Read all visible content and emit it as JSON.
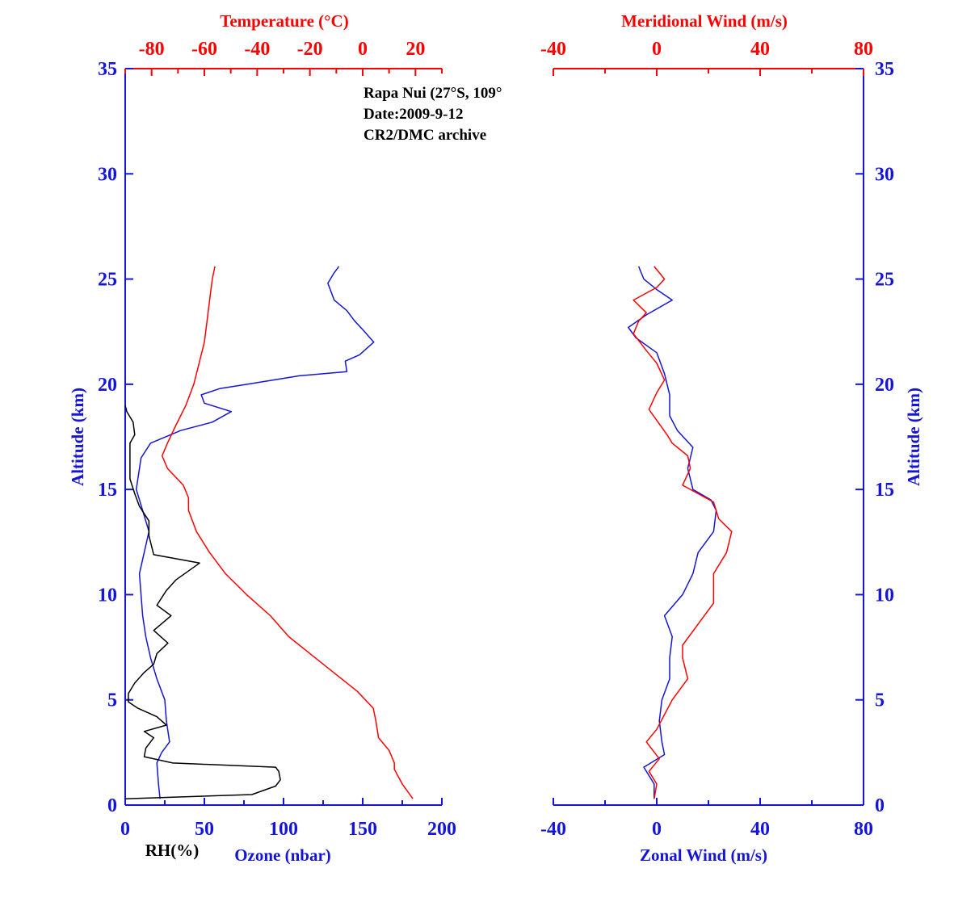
{
  "colors": {
    "blue": "#1515d6",
    "red": "#ff0000",
    "black": "#000000"
  },
  "annotation": [
    "Rapa Nui (27°S, 109°",
    "Date:2009-9-12",
    "CR2/DMC archive"
  ],
  "chart_data": [
    {
      "type": "line",
      "panel": "left",
      "ylabel": "Altitude (km)",
      "ylim": [
        0,
        35
      ],
      "yticks": [
        0,
        5,
        10,
        15,
        20,
        25,
        30,
        35
      ],
      "bottom_axis": {
        "label": "Ozone (nbar)",
        "xlim": [
          0,
          200
        ],
        "ticks": [
          0,
          50,
          100,
          150,
          200
        ]
      },
      "bottom_axis_extra_label": "RH(%)",
      "top_axis": {
        "label": "Temperature (°C)",
        "xlim": [
          -90,
          30
        ],
        "ticks": [
          -80,
          -60,
          -40,
          -20,
          0,
          20
        ]
      },
      "series": [
        {
          "name": "Ozone (nbar)",
          "axis": "bottom",
          "color": "blue",
          "points": [
            [
              22,
              0.3
            ],
            [
              21,
              1
            ],
            [
              20,
              2
            ],
            [
              23,
              2.5
            ],
            [
              28,
              3
            ],
            [
              26,
              4
            ],
            [
              25,
              5
            ],
            [
              20,
              6
            ],
            [
              16,
              7
            ],
            [
              13,
              8
            ],
            [
              11,
              9
            ],
            [
              10,
              10
            ],
            [
              9,
              11
            ],
            [
              12,
              12
            ],
            [
              15,
              13
            ],
            [
              11,
              14
            ],
            [
              7,
              15
            ],
            [
              10,
              16.5
            ],
            [
              16,
              17.2
            ],
            [
              35,
              17.8
            ],
            [
              55,
              18.2
            ],
            [
              67,
              18.7
            ],
            [
              50,
              19.1
            ],
            [
              48,
              19.5
            ],
            [
              60,
              19.8
            ],
            [
              77,
              20
            ],
            [
              110,
              20.4
            ],
            [
              140,
              20.6
            ],
            [
              139,
              21.1
            ],
            [
              148,
              21.4
            ],
            [
              157,
              22
            ],
            [
              150,
              22.6
            ],
            [
              145,
              23
            ],
            [
              140,
              23.5
            ],
            [
              132,
              24
            ],
            [
              130,
              24.4
            ],
            [
              128,
              24.8
            ],
            [
              132,
              25.3
            ],
            [
              135,
              25.6
            ]
          ]
        },
        {
          "name": "RH(%)",
          "axis": "bottom",
          "color": "black",
          "points": [
            [
              0,
              0.3
            ],
            [
              80,
              0.5
            ],
            [
              95,
              0.9
            ],
            [
              98,
              1.2
            ],
            [
              97,
              1.6
            ],
            [
              95,
              1.8
            ],
            [
              30,
              2
            ],
            [
              12,
              2.3
            ],
            [
              13,
              2.7
            ],
            [
              18,
              3.2
            ],
            [
              12,
              3.5
            ],
            [
              26,
              3.8
            ],
            [
              20,
              4.2
            ],
            [
              8,
              4.6
            ],
            [
              2,
              4.9
            ],
            [
              2,
              5.3
            ],
            [
              6,
              5.8
            ],
            [
              12,
              6.3
            ],
            [
              18,
              6.7
            ],
            [
              20,
              7.2
            ],
            [
              27,
              7.7
            ],
            [
              18,
              8.3
            ],
            [
              29,
              9
            ],
            [
              20,
              9.5
            ],
            [
              26,
              10.2
            ],
            [
              32,
              10.7
            ],
            [
              47,
              11.5
            ],
            [
              18,
              11.9
            ],
            [
              15,
              12.8
            ],
            [
              15,
              13.5
            ],
            [
              9,
              14.2
            ],
            [
              6,
              14.8
            ],
            [
              3,
              15.5
            ],
            [
              3,
              16.5
            ],
            [
              3,
              17.2
            ],
            [
              6,
              17.6
            ],
            [
              5,
              18.2
            ],
            [
              1,
              18.7
            ],
            [
              0,
              19
            ]
          ]
        },
        {
          "name": "Temperature (°C)",
          "axis": "top",
          "color": "red",
          "points": [
            [
              19,
              0.3
            ],
            [
              15,
              1
            ],
            [
              12,
              1.7
            ],
            [
              12,
              2
            ],
            [
              10,
              2.6
            ],
            [
              6,
              3.2
            ],
            [
              5,
              4
            ],
            [
              4,
              4.6
            ],
            [
              -2,
              5.4
            ],
            [
              -10,
              6.2
            ],
            [
              -20,
              7.2
            ],
            [
              -28,
              8
            ],
            [
              -35,
              9
            ],
            [
              -44,
              10
            ],
            [
              -52,
              11
            ],
            [
              -58,
              12
            ],
            [
              -63,
              13
            ],
            [
              -66,
              14
            ],
            [
              -66,
              14.6
            ],
            [
              -68,
              15.2
            ],
            [
              -74,
              16
            ],
            [
              -76,
              16.6
            ],
            [
              -74,
              17.2
            ],
            [
              -71,
              18
            ],
            [
              -67,
              19
            ],
            [
              -64,
              20
            ],
            [
              -62,
              21
            ],
            [
              -60,
              22
            ],
            [
              -59,
              23
            ],
            [
              -58,
              24
            ],
            [
              -57,
              25
            ],
            [
              -56,
              25.6
            ]
          ]
        }
      ]
    },
    {
      "type": "line",
      "panel": "right",
      "ylabel": "Altitude (km)",
      "ylim": [
        0,
        35
      ],
      "yticks": [
        0,
        5,
        10,
        15,
        20,
        25,
        30,
        35
      ],
      "bottom_axis": {
        "label": "Zonal Wind (m/s)",
        "xlim": [
          -40,
          80
        ],
        "ticks": [
          -40,
          0,
          40,
          80
        ]
      },
      "top_axis": {
        "label": "Meridional Wind (m/s)",
        "xlim": [
          -40,
          80
        ],
        "ticks": [
          -40,
          0,
          40,
          80
        ]
      },
      "series": [
        {
          "name": "Zonal Wind (m/s)",
          "axis": "bottom",
          "color": "blue",
          "points": [
            [
              -1,
              0.3
            ],
            [
              -1,
              1
            ],
            [
              -5,
              1.8
            ],
            [
              3,
              2.4
            ],
            [
              2,
              3
            ],
            [
              1,
              4
            ],
            [
              2,
              5
            ],
            [
              5,
              6
            ],
            [
              5,
              7
            ],
            [
              6,
              8
            ],
            [
              3,
              9
            ],
            [
              10,
              10
            ],
            [
              14,
              11
            ],
            [
              16,
              12
            ],
            [
              22,
              13
            ],
            [
              23,
              14
            ],
            [
              21,
              14.5
            ],
            [
              14,
              15
            ],
            [
              12,
              16
            ],
            [
              14,
              17
            ],
            [
              8,
              17.8
            ],
            [
              5,
              18.5
            ],
            [
              5,
              19.5
            ],
            [
              3,
              20.5
            ],
            [
              0,
              21.5
            ],
            [
              -8,
              22.2
            ],
            [
              -11,
              22.7
            ],
            [
              -4,
              23.3
            ],
            [
              6,
              24
            ],
            [
              0,
              24.5
            ],
            [
              -5,
              25
            ],
            [
              -7,
              25.6
            ]
          ]
        },
        {
          "name": "Meridional Wind (m/s)",
          "axis": "top",
          "color": "red",
          "points": [
            [
              -1,
              0.3
            ],
            [
              0,
              1
            ],
            [
              -3,
              1.6
            ],
            [
              1,
              2.2
            ],
            [
              -4,
              3
            ],
            [
              0,
              3.6
            ],
            [
              6,
              5
            ],
            [
              12,
              6
            ],
            [
              10,
              7
            ],
            [
              10,
              7.6
            ],
            [
              16,
              8.6
            ],
            [
              22,
              9.6
            ],
            [
              22,
              11
            ],
            [
              27,
              12
            ],
            [
              29,
              13
            ],
            [
              24,
              13.6
            ],
            [
              22,
              14.4
            ],
            [
              10,
              15.2
            ],
            [
              13,
              16
            ],
            [
              12,
              16.6
            ],
            [
              6,
              17.2
            ],
            [
              4,
              17.6
            ],
            [
              -3,
              18.8
            ],
            [
              0,
              19.6
            ],
            [
              3,
              20.2
            ],
            [
              0,
              21
            ],
            [
              -4,
              21.6
            ],
            [
              -9,
              22.4
            ],
            [
              -7,
              23
            ],
            [
              -4,
              23.4
            ],
            [
              -9,
              24
            ],
            [
              0,
              24.6
            ],
            [
              3,
              25
            ],
            [
              -1,
              25.6
            ]
          ]
        }
      ]
    }
  ]
}
